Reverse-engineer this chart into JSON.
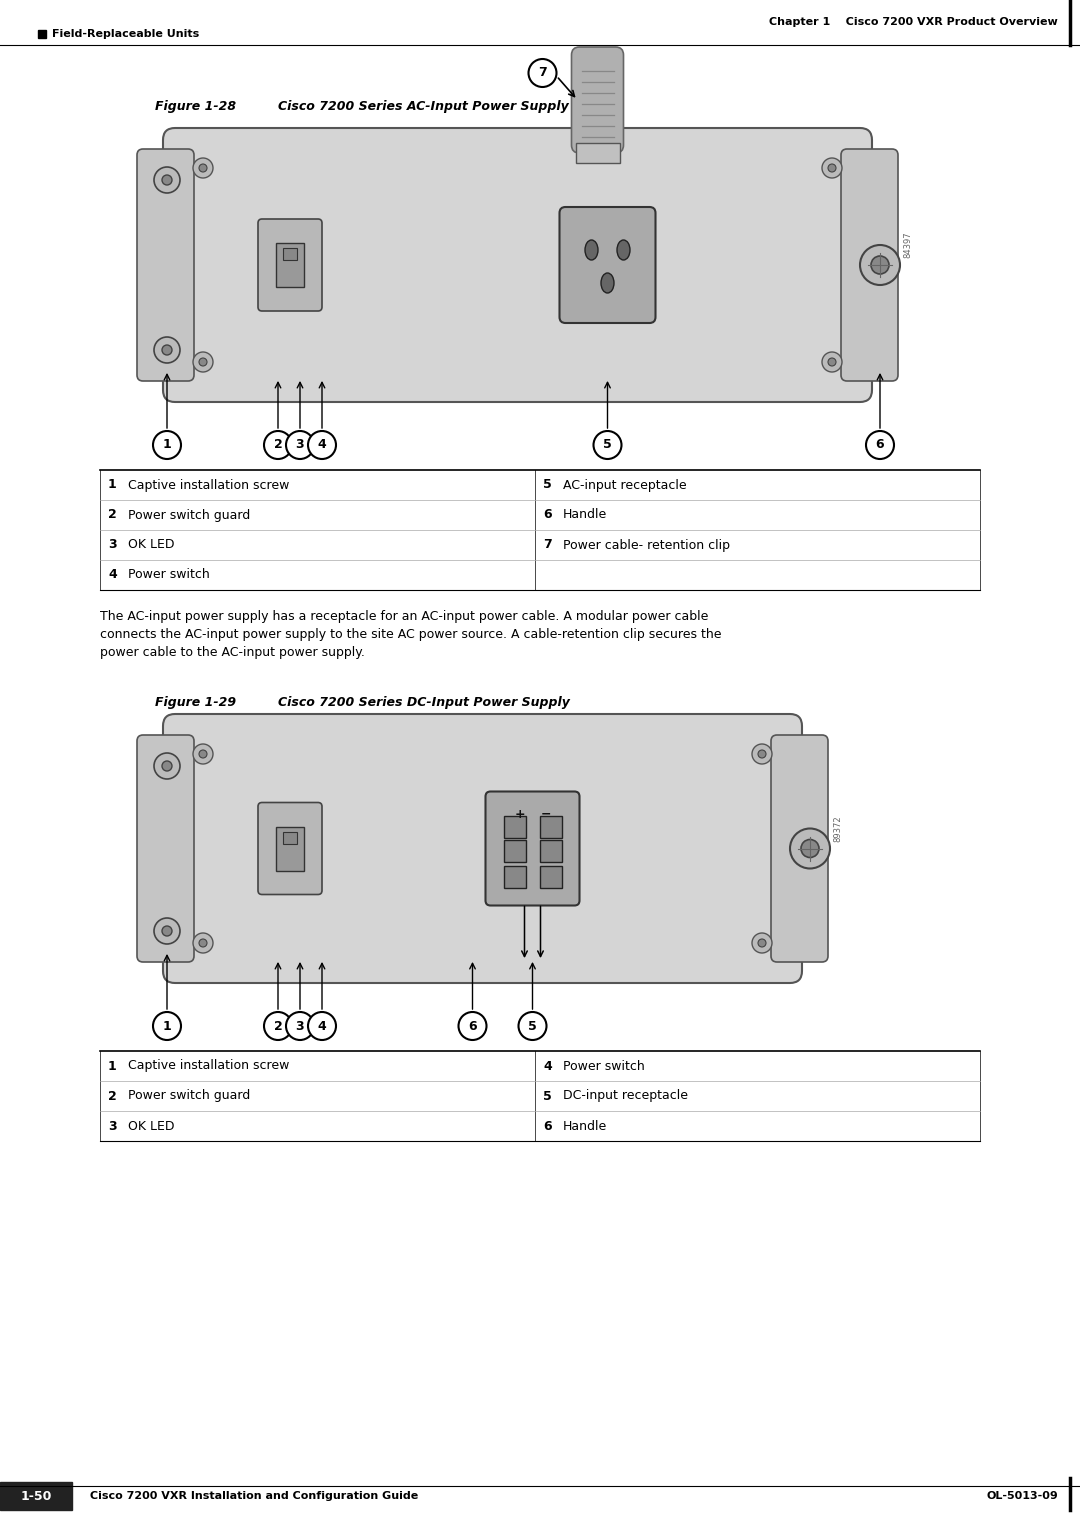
{
  "page_header_right": "Chapter 1    Cisco 7200 VXR Product Overview",
  "page_header_left": "Field-Replaceable Units",
  "page_footer_left": "Cisco 7200 VXR Installation and Configuration Guide",
  "page_footer_right": "OL-5013-09",
  "page_number": "1-50",
  "fig1_title_num": "Figure 1-28",
  "fig1_title_text": "Cisco 7200 Series AC-Input Power Supply",
  "fig2_title_num": "Figure 1-29",
  "fig2_title_text": "Cisco 7200 Series DC-Input Power Supply",
  "table1_rows": [
    [
      "1",
      "Captive installation screw",
      "5",
      "AC-input receptacle"
    ],
    [
      "2",
      "Power switch guard",
      "6",
      "Handle"
    ],
    [
      "3",
      "OK LED",
      "7",
      "Power cable- retention clip"
    ],
    [
      "4",
      "Power switch",
      "",
      ""
    ]
  ],
  "table2_rows": [
    [
      "1",
      "Captive installation screw",
      "4",
      "Power switch"
    ],
    [
      "2",
      "Power switch guard",
      "5",
      "DC-input receptacle"
    ],
    [
      "3",
      "OK LED",
      "6",
      "Handle"
    ]
  ],
  "body_text": "The AC-input power supply has a receptacle for an AC-input power cable. A modular power cable\nconnects the AC-input power supply to the site AC power source. A cable-retention clip secures the\npower cable to the AC-input power supply.",
  "bg_color": "#ffffff",
  "text_color": "#000000"
}
